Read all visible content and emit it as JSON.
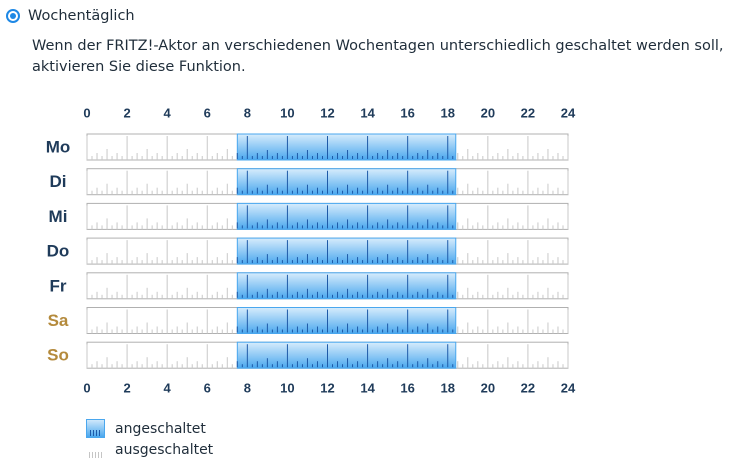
{
  "option": {
    "label": "Wochentäglich",
    "selected": true
  },
  "description": "Wenn der FRITZ!-Aktor an verschiedenen Wochentagen unterschiedlich geschaltet werden soll, aktivieren Sie diese Funktion.",
  "schedule": {
    "hour_labels": [
      "0",
      "2",
      "4",
      "6",
      "8",
      "10",
      "12",
      "14",
      "16",
      "18",
      "20",
      "22",
      "24"
    ],
    "days": [
      {
        "label": "Mo",
        "weekend": false,
        "on": [
          [
            7.5,
            18.4
          ]
        ]
      },
      {
        "label": "Di",
        "weekend": false,
        "on": [
          [
            7.5,
            18.4
          ]
        ]
      },
      {
        "label": "Mi",
        "weekend": false,
        "on": [
          [
            7.5,
            18.4
          ]
        ]
      },
      {
        "label": "Do",
        "weekend": false,
        "on": [
          [
            7.5,
            18.4
          ]
        ]
      },
      {
        "label": "Fr",
        "weekend": false,
        "on": [
          [
            7.5,
            18.4
          ]
        ]
      },
      {
        "label": "Sa",
        "weekend": true,
        "on": [
          [
            7.5,
            18.4
          ]
        ]
      },
      {
        "label": "So",
        "weekend": true,
        "on": [
          [
            7.5,
            18.4
          ]
        ]
      }
    ],
    "colors": {
      "on_top": "#d7ecfc",
      "on_bottom": "#4aa7ee",
      "tick_on": "#1e5aa8",
      "tick_off": "#c8c8c8",
      "weekday": "#1f3b5a",
      "weekend": "#b48a3c",
      "grid": "#b0b0b0"
    }
  },
  "legend": {
    "on_label": "angeschaltet",
    "off_label": "ausgeschaltet"
  }
}
